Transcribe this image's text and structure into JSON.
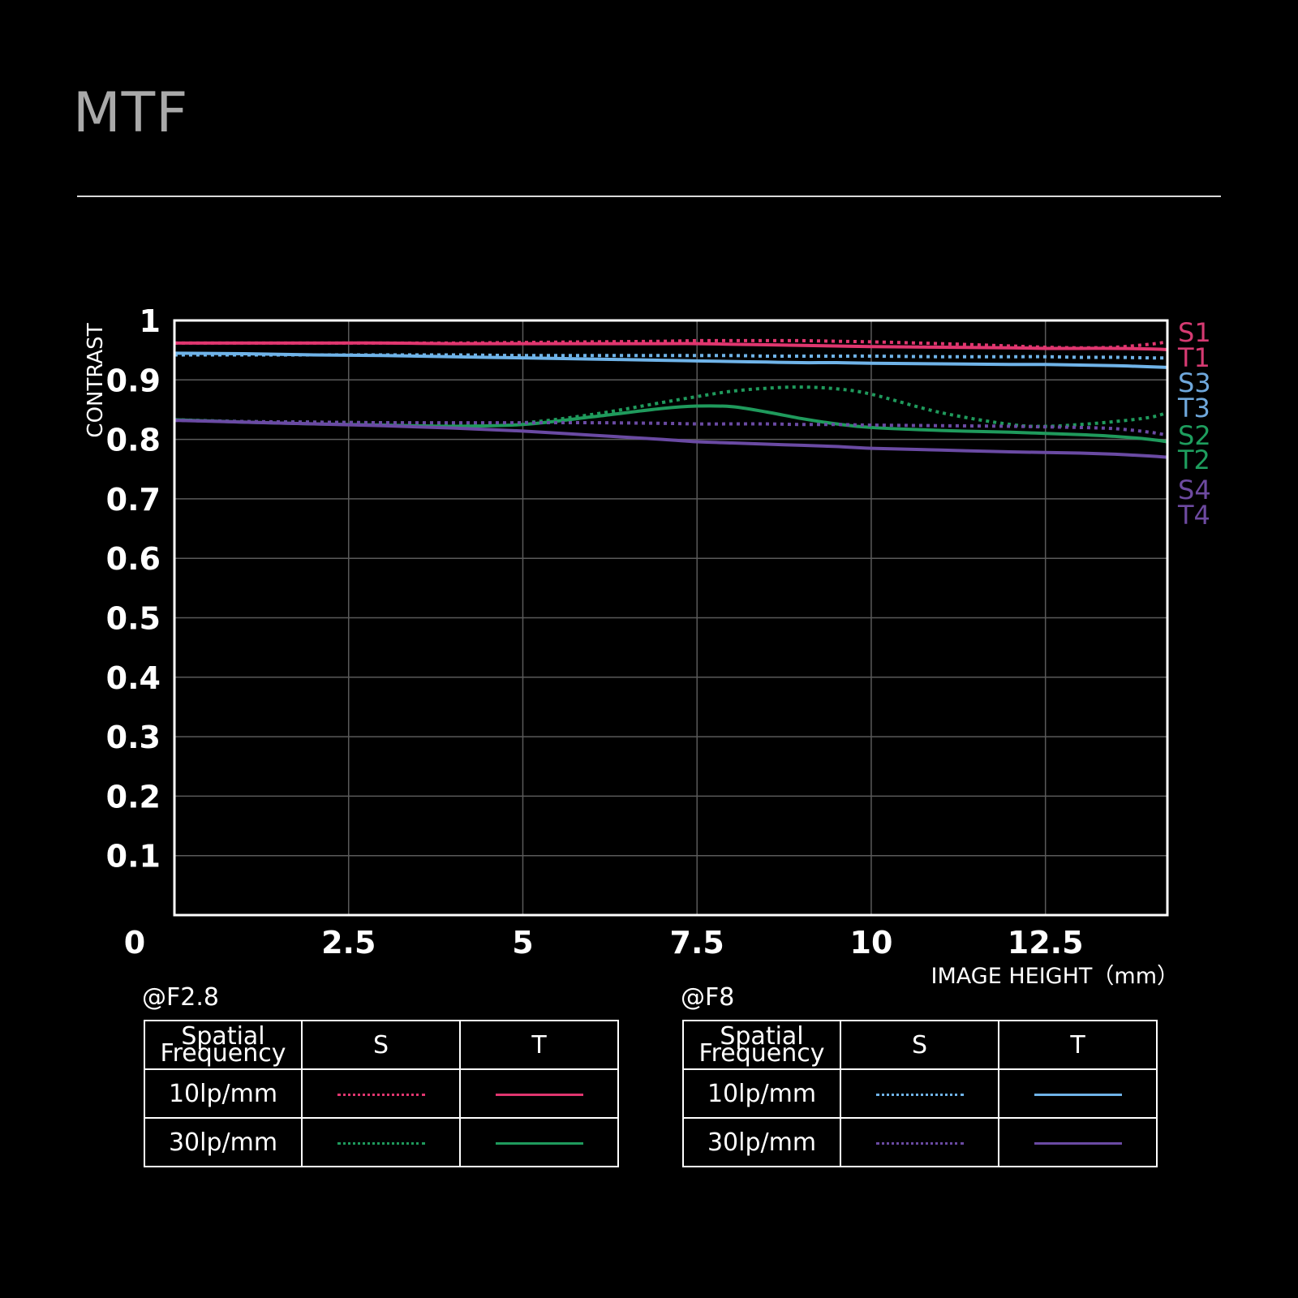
{
  "page": {
    "title": "MTF"
  },
  "chart_data": {
    "type": "line",
    "title": "MTF",
    "xlabel": "IMAGE HEIGHT（mm）",
    "ylabel": "CONTRAST",
    "xlim": [
      0,
      14.25
    ],
    "ylim": [
      0,
      1
    ],
    "xticks": [
      0,
      2.5,
      5,
      7.5,
      10,
      12.5
    ],
    "xtick_labels": [
      "0",
      "2.5",
      "5",
      "7.5",
      "10",
      "12.5"
    ],
    "yticks": [
      0.1,
      0.2,
      0.3,
      0.4,
      0.5,
      0.6,
      0.7,
      0.8,
      0.9,
      1
    ],
    "ytick_labels": [
      "0.1",
      "0.2",
      "0.3",
      "0.4",
      "0.5",
      "0.6",
      "0.7",
      "0.8",
      "0.9",
      "1"
    ],
    "grid": true,
    "x": [
      0,
      1,
      2,
      3,
      4,
      5,
      6,
      7,
      7.5,
      8,
      8.5,
      9,
      9.5,
      10,
      11,
      12,
      12.5,
      13,
      13.5,
      14,
      14.25
    ],
    "series": [
      {
        "name": "S1",
        "label_color": "#d63a72",
        "color": "#e0366f",
        "dash": true,
        "values": [
          0.962,
          0.962,
          0.962,
          0.962,
          0.962,
          0.963,
          0.964,
          0.965,
          0.966,
          0.966,
          0.966,
          0.966,
          0.965,
          0.964,
          0.961,
          0.957,
          0.955,
          0.954,
          0.955,
          0.96,
          0.964
        ]
      },
      {
        "name": "T1",
        "label_color": "#d63a72",
        "color": "#e0366f",
        "dash": false,
        "values": [
          0.962,
          0.962,
          0.962,
          0.962,
          0.961,
          0.961,
          0.961,
          0.961,
          0.961,
          0.96,
          0.959,
          0.958,
          0.957,
          0.956,
          0.955,
          0.954,
          0.953,
          0.953,
          0.953,
          0.952,
          0.951
        ]
      },
      {
        "name": "S3",
        "label_color": "#6fa8dc",
        "color": "#6fb3e8",
        "dash": true,
        "values": [
          0.942,
          0.942,
          0.942,
          0.942,
          0.942,
          0.941,
          0.941,
          0.941,
          0.941,
          0.941,
          0.94,
          0.94,
          0.94,
          0.94,
          0.939,
          0.939,
          0.939,
          0.938,
          0.938,
          0.937,
          0.937
        ]
      },
      {
        "name": "T3",
        "label_color": "#6fa8dc",
        "color": "#6fb3e8",
        "dash": false,
        "values": [
          0.945,
          0.944,
          0.942,
          0.941,
          0.939,
          0.937,
          0.935,
          0.933,
          0.932,
          0.931,
          0.93,
          0.929,
          0.929,
          0.928,
          0.927,
          0.926,
          0.926,
          0.925,
          0.924,
          0.922,
          0.921
        ]
      },
      {
        "name": "S2",
        "label_color": "#1e9e5e",
        "color": "#1f9a5c",
        "dash": true,
        "values": [
          0.833,
          0.83,
          0.829,
          0.828,
          0.827,
          0.828,
          0.842,
          0.862,
          0.872,
          0.881,
          0.886,
          0.888,
          0.885,
          0.876,
          0.845,
          0.825,
          0.822,
          0.825,
          0.83,
          0.837,
          0.845
        ]
      },
      {
        "name": "T2",
        "label_color": "#1e9e5e",
        "color": "#1f9a5c",
        "dash": false,
        "values": [
          0.833,
          0.829,
          0.826,
          0.824,
          0.822,
          0.825,
          0.838,
          0.852,
          0.856,
          0.855,
          0.846,
          0.835,
          0.826,
          0.82,
          0.815,
          0.812,
          0.81,
          0.808,
          0.805,
          0.8,
          0.796
        ]
      },
      {
        "name": "S4",
        "label_color": "#6d4aa0",
        "color": "#6a4aa3",
        "dash": true,
        "values": [
          0.832,
          0.83,
          0.829,
          0.828,
          0.828,
          0.828,
          0.828,
          0.827,
          0.826,
          0.826,
          0.826,
          0.825,
          0.825,
          0.824,
          0.823,
          0.822,
          0.821,
          0.82,
          0.818,
          0.812,
          0.807
        ]
      },
      {
        "name": "T4",
        "label_color": "#6d4aa0",
        "color": "#6a4aa3",
        "dash": false,
        "values": [
          0.832,
          0.829,
          0.826,
          0.823,
          0.819,
          0.814,
          0.807,
          0.8,
          0.796,
          0.794,
          0.792,
          0.79,
          0.788,
          0.785,
          0.782,
          0.779,
          0.778,
          0.777,
          0.775,
          0.772,
          0.77
        ]
      }
    ]
  },
  "legend": {
    "left": {
      "title": "@F2.8",
      "header": {
        "sf": "Spatial\nFrequency",
        "s": "S",
        "t": "T"
      },
      "rows": [
        {
          "sf": "10lp/mm",
          "s_color": "#e0366f",
          "t_color": "#e0366f"
        },
        {
          "sf": "30lp/mm",
          "s_color": "#1f9a5c",
          "t_color": "#1f9a5c"
        }
      ]
    },
    "right": {
      "title": "@F8",
      "header": {
        "sf": "Spatial\nFrequency",
        "s": "S",
        "t": "T"
      },
      "rows": [
        {
          "sf": "10lp/mm",
          "s_color": "#6fb3e8",
          "t_color": "#6fb3e8"
        },
        {
          "sf": "30lp/mm",
          "s_color": "#6a4aa3",
          "t_color": "#6a4aa3"
        }
      ]
    }
  }
}
